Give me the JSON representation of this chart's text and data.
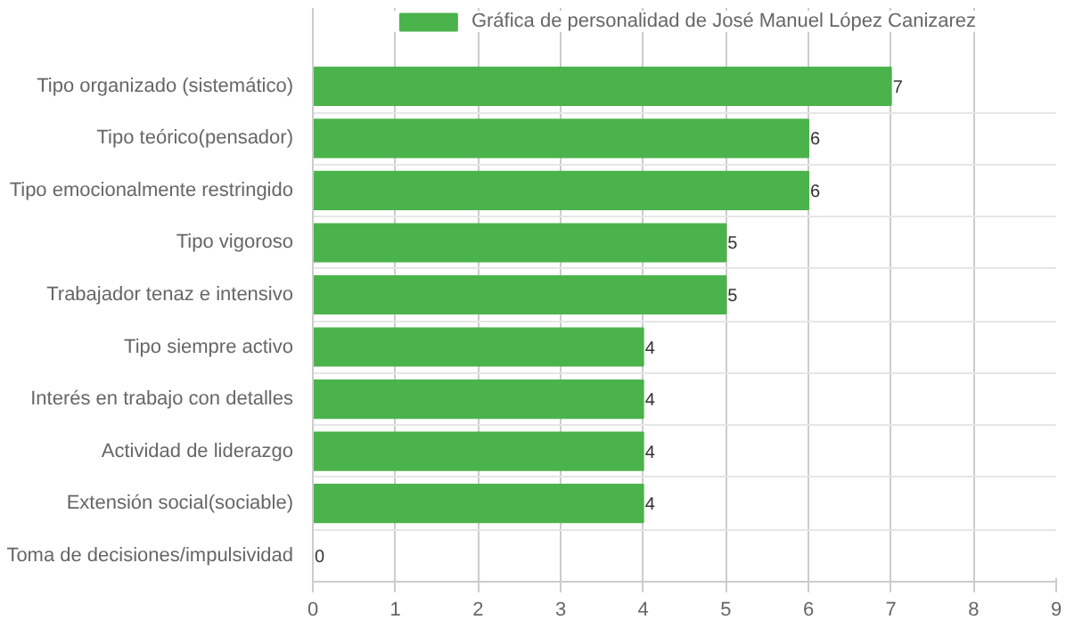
{
  "chart_data": {
    "type": "bar",
    "orientation": "horizontal",
    "categories": [
      "Tipo organizado (sistemático)",
      "Tipo teórico(pensador)",
      "Tipo emocionalmente restringido",
      "Tipo vigoroso",
      "Trabajador tenaz e intensivo",
      "Tipo siempre activo",
      "Interés en trabajo con detalles",
      "Actividad de liderazgo",
      "Extensión social(sociable)",
      "Toma de decisiones/impulsividad"
    ],
    "series": [
      {
        "name": "Gráfica de personalidad de José Manuel López Canizarez",
        "color": "#4bb34b",
        "values": [
          7,
          6,
          6,
          5,
          5,
          4,
          4,
          4,
          4,
          0
        ]
      }
    ],
    "xlim": [
      0,
      9
    ],
    "xticks": [
      0,
      1,
      2,
      3,
      4,
      5,
      6,
      7,
      8,
      9
    ],
    "grid": true,
    "legend": "top",
    "data_labels": true
  }
}
